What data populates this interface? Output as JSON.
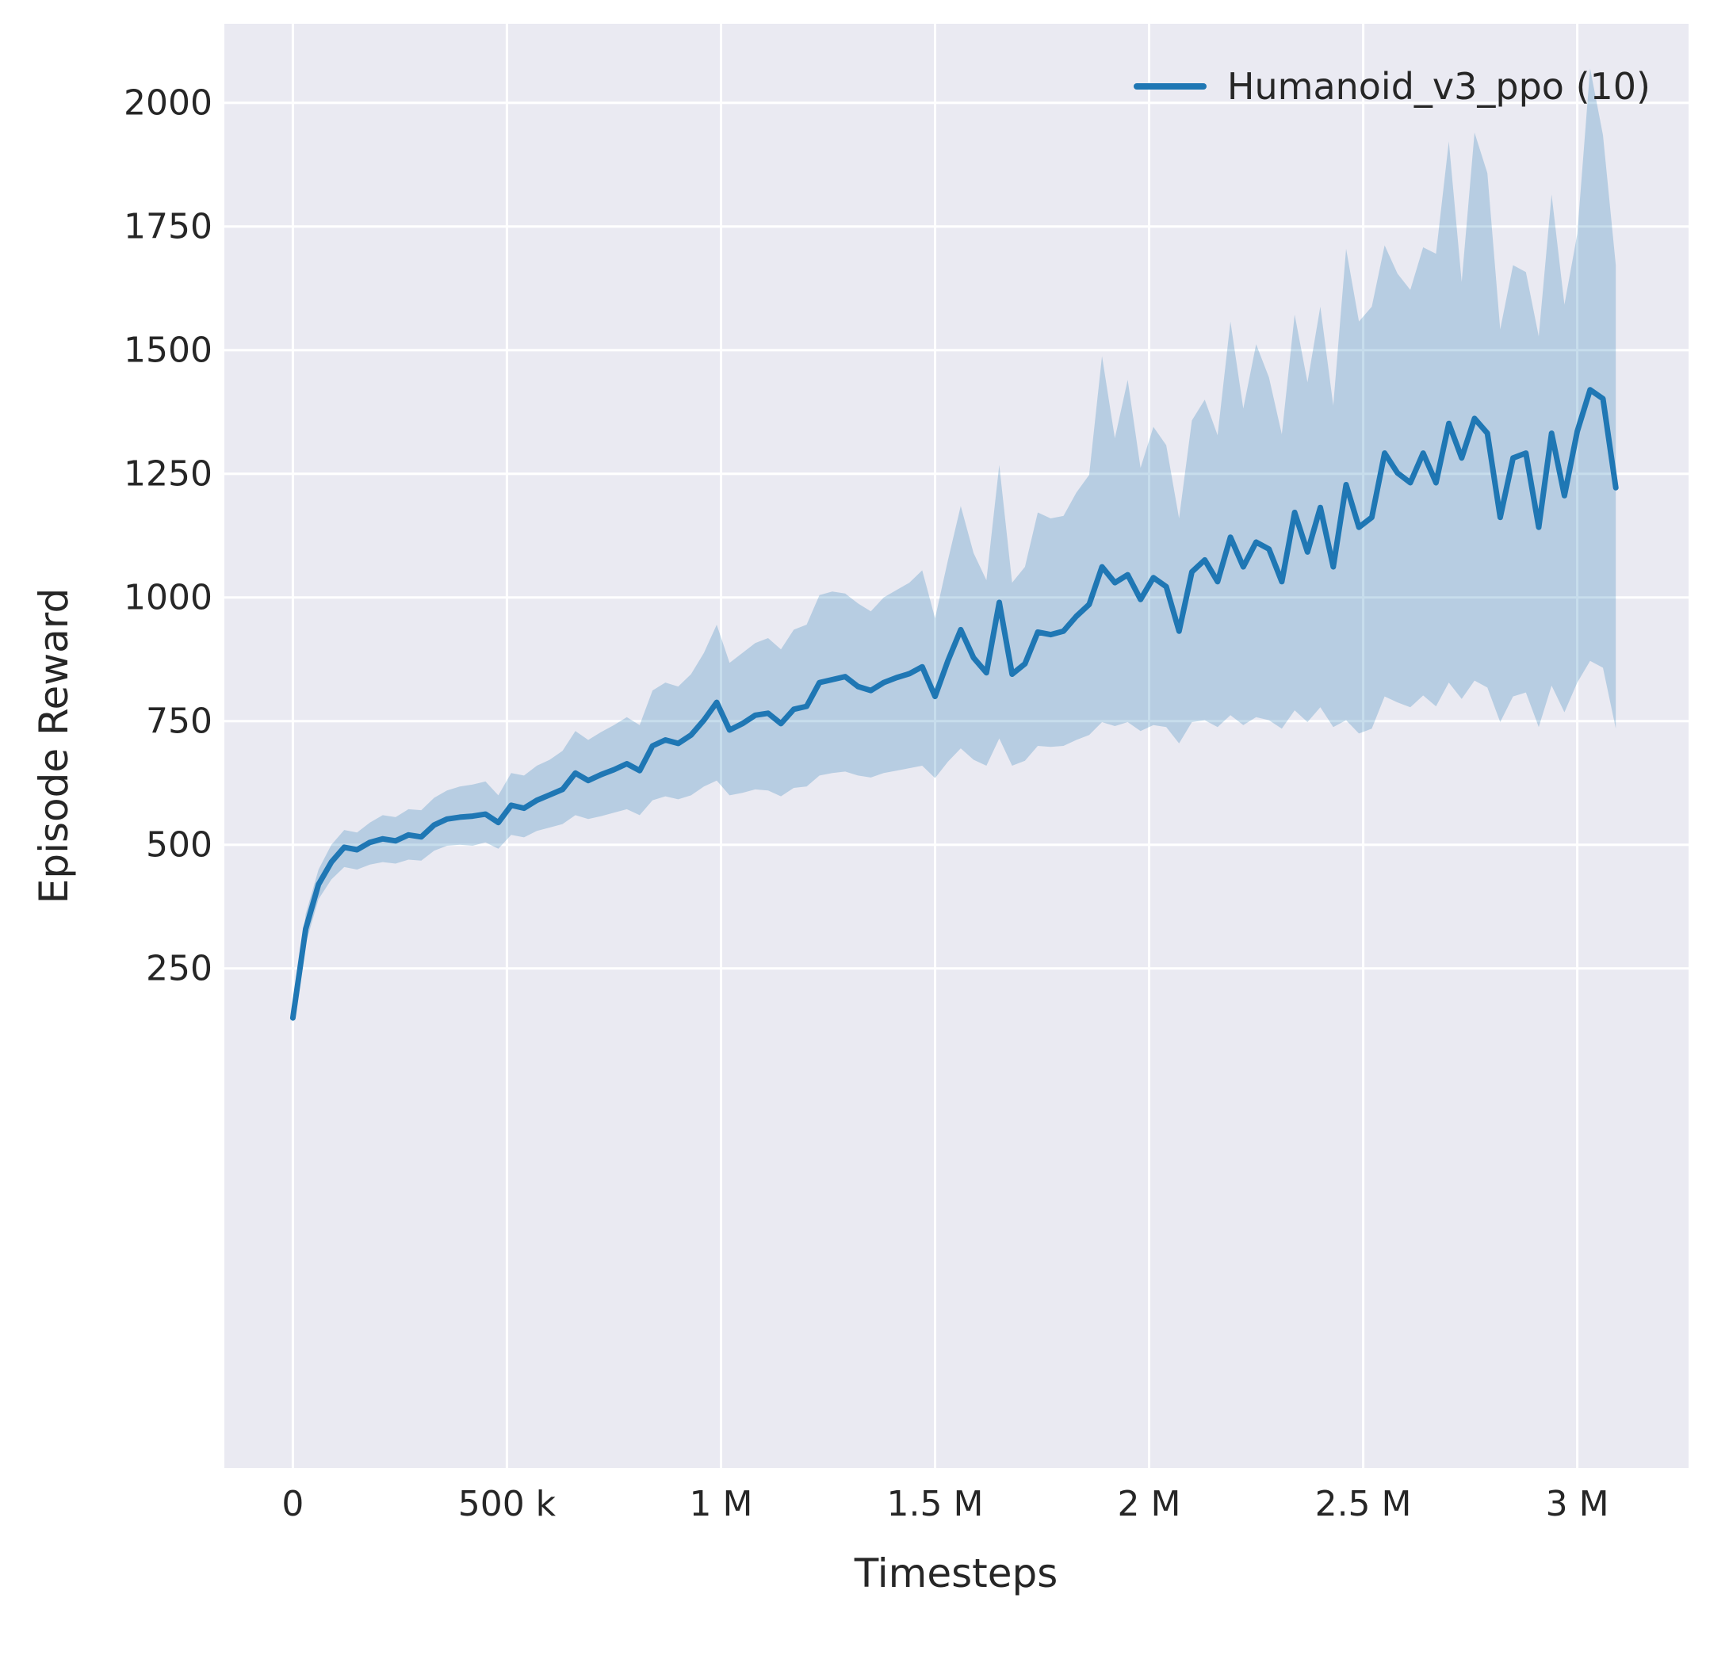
{
  "chart_data": {
    "type": "line",
    "title": "",
    "xlabel": "Timesteps",
    "ylabel": "Episode Reward",
    "legend_label": "Humanoid_v3_ppo (10)",
    "legend_position": "upper right",
    "grid": true,
    "xlim": [
      -160000,
      3260000
    ],
    "ylim": [
      -760,
      2160
    ],
    "x_ticks": [
      {
        "value": 0,
        "label": "0"
      },
      {
        "value": 500000,
        "label": "500 k"
      },
      {
        "value": 1000000,
        "label": "1 M"
      },
      {
        "value": 1500000,
        "label": "1.5 M"
      },
      {
        "value": 2000000,
        "label": "2 M"
      },
      {
        "value": 2500000,
        "label": "2.5 M"
      },
      {
        "value": 3000000,
        "label": "3 M"
      }
    ],
    "y_ticks": [
      {
        "value": 250,
        "label": "250"
      },
      {
        "value": 500,
        "label": "500"
      },
      {
        "value": 750,
        "label": "750"
      },
      {
        "value": 1000,
        "label": "1000"
      },
      {
        "value": 1250,
        "label": "1250"
      },
      {
        "value": 1500,
        "label": "1500"
      },
      {
        "value": 1750,
        "label": "1750"
      },
      {
        "value": 2000,
        "label": "2000"
      }
    ],
    "series": [
      {
        "name": "Humanoid_v3_ppo (10)",
        "x": [
          0,
          30000,
          60000,
          90000,
          120000,
          150000,
          180000,
          210000,
          240000,
          270000,
          300000,
          330000,
          360000,
          390000,
          420000,
          450000,
          480000,
          510000,
          540000,
          570000,
          600000,
          630000,
          660000,
          690000,
          720000,
          750000,
          780000,
          810000,
          840000,
          870000,
          900000,
          930000,
          960000,
          990000,
          1020000,
          1050000,
          1080000,
          1110000,
          1140000,
          1170000,
          1200000,
          1230000,
          1260000,
          1290000,
          1320000,
          1350000,
          1380000,
          1410000,
          1440000,
          1470000,
          1500000,
          1530000,
          1560000,
          1590000,
          1620000,
          1650000,
          1680000,
          1710000,
          1740000,
          1770000,
          1800000,
          1830000,
          1860000,
          1890000,
          1920000,
          1950000,
          1980000,
          2010000,
          2040000,
          2070000,
          2100000,
          2130000,
          2160000,
          2190000,
          2220000,
          2250000,
          2280000,
          2310000,
          2340000,
          2370000,
          2400000,
          2430000,
          2460000,
          2490000,
          2520000,
          2550000,
          2580000,
          2610000,
          2640000,
          2670000,
          2700000,
          2730000,
          2760000,
          2790000,
          2820000,
          2850000,
          2880000,
          2910000,
          2940000,
          2970000,
          3000000,
          3030000,
          3060000,
          3090000
        ],
        "mean": [
          150,
          330,
          420,
          465,
          495,
          490,
          505,
          512,
          508,
          520,
          516,
          540,
          552,
          556,
          558,
          562,
          545,
          580,
          574,
          590,
          601,
          612,
          645,
          630,
          642,
          652,
          664,
          650,
          700,
          712,
          705,
          722,
          752,
          788,
          732,
          745,
          762,
          766,
          745,
          774,
          780,
          828,
          834,
          840,
          820,
          812,
          828,
          838,
          846,
          860,
          800,
          872,
          935,
          878,
          848,
          990,
          845,
          866,
          930,
          925,
          932,
          962,
          986,
          1062,
          1030,
          1046,
          996,
          1040,
          1022,
          932,
          1052,
          1076,
          1032,
          1122,
          1062,
          1112,
          1098,
          1032,
          1172,
          1092,
          1182,
          1062,
          1228,
          1142,
          1162,
          1292,
          1252,
          1232,
          1292,
          1232,
          1352,
          1282,
          1362,
          1332,
          1162,
          1282,
          1292,
          1142,
          1332,
          1206,
          1336,
          1420,
          1402,
          1222
        ],
        "lower": [
          140,
          300,
          390,
          430,
          455,
          450,
          460,
          465,
          462,
          470,
          468,
          488,
          498,
          500,
          498,
          505,
          492,
          520,
          515,
          528,
          535,
          542,
          560,
          552,
          558,
          565,
          572,
          560,
          590,
          598,
          592,
          600,
          618,
          630,
          600,
          605,
          612,
          610,
          598,
          615,
          618,
          640,
          645,
          648,
          640,
          636,
          645,
          650,
          655,
          660,
          635,
          668,
          695,
          672,
          660,
          715,
          660,
          670,
          700,
          698,
          700,
          712,
          722,
          748,
          740,
          748,
          730,
          742,
          738,
          705,
          748,
          752,
          738,
          762,
          742,
          758,
          752,
          735,
          772,
          748,
          778,
          738,
          752,
          725,
          735,
          800,
          788,
          778,
          802,
          780,
          828,
          795,
          832,
          818,
          748,
          800,
          808,
          738,
          822,
          768,
          828,
          872,
          858,
          735
        ],
        "upper": [
          160,
          360,
          450,
          500,
          530,
          525,
          545,
          560,
          556,
          572,
          570,
          595,
          610,
          618,
          622,
          628,
          600,
          645,
          640,
          660,
          672,
          690,
          730,
          712,
          728,
          742,
          758,
          742,
          812,
          828,
          820,
          845,
          888,
          945,
          868,
          888,
          908,
          918,
          895,
          935,
          945,
          1005,
          1012,
          1008,
          988,
          972,
          1000,
          1015,
          1030,
          1055,
          958,
          1075,
          1185,
          1090,
          1035,
          1268,
          1030,
          1062,
          1172,
          1160,
          1165,
          1212,
          1248,
          1488,
          1322,
          1440,
          1262,
          1345,
          1308,
          1160,
          1358,
          1400,
          1328,
          1558,
          1382,
          1512,
          1445,
          1330,
          1572,
          1435,
          1588,
          1388,
          1705,
          1558,
          1588,
          1712,
          1655,
          1622,
          1708,
          1695,
          1922,
          1638,
          1940,
          1858,
          1542,
          1672,
          1658,
          1528,
          1815,
          1592,
          1735,
          2070,
          1935,
          1672
        ]
      }
    ]
  },
  "style": {
    "line_color": "#1f77b4",
    "band_color": "rgba(31,119,180,0.25)",
    "axes_background": "#eaeaf2",
    "grid_color": "#ffffff",
    "text_color": "#262626"
  }
}
